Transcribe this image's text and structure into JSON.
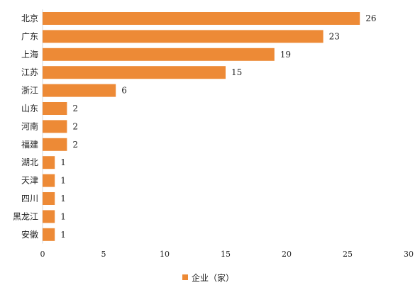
{
  "chart_data": {
    "type": "bar",
    "orientation": "horizontal",
    "categories": [
      "北京",
      "广东",
      "上海",
      "江苏",
      "浙江",
      "山东",
      "河南",
      "福建",
      "湖北",
      "天津",
      "四川",
      "黑龙江",
      "安徽"
    ],
    "series": [
      {
        "name": "企业（家）",
        "values": [
          26,
          23,
          19,
          15,
          6,
          2,
          2,
          2,
          1,
          1,
          1,
          1,
          1
        ],
        "color": "#ED8A36"
      }
    ],
    "xlim": [
      0,
      30
    ],
    "xticks": [
      0,
      5,
      10,
      15,
      20,
      25,
      30
    ],
    "grid": false,
    "legend": "bottom",
    "data_labels": true
  }
}
